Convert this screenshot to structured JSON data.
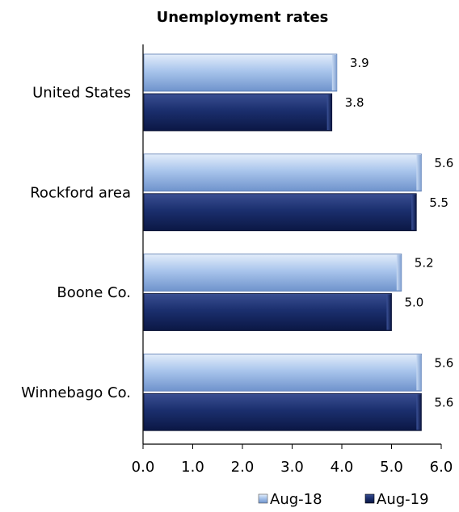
{
  "chart_data": {
    "type": "bar",
    "orientation": "horizontal",
    "title": "Unemployment rates",
    "xlabel": "",
    "ylabel": "",
    "categories": [
      "United States",
      "Rockford area",
      "Boone Co.",
      "Winnebago Co."
    ],
    "series": [
      {
        "name": "Aug-18",
        "values": [
          3.9,
          5.6,
          5.2,
          5.6
        ],
        "color": "#9fbde6"
      },
      {
        "name": "Aug-19",
        "values": [
          3.8,
          5.5,
          5.0,
          5.6
        ],
        "color": "#1a2e6c"
      }
    ],
    "data_labels": [
      [
        "3.9",
        "5.6",
        "5.2",
        "5.6"
      ],
      [
        "3.8",
        "5.5",
        "5.0",
        "5.6"
      ]
    ],
    "xlim": [
      0,
      6
    ],
    "xticks": [
      "0.0",
      "1.0",
      "2.0",
      "3.0",
      "4.0",
      "5.0",
      "6.0"
    ],
    "grid": false,
    "legend_position": "bottom-right"
  }
}
